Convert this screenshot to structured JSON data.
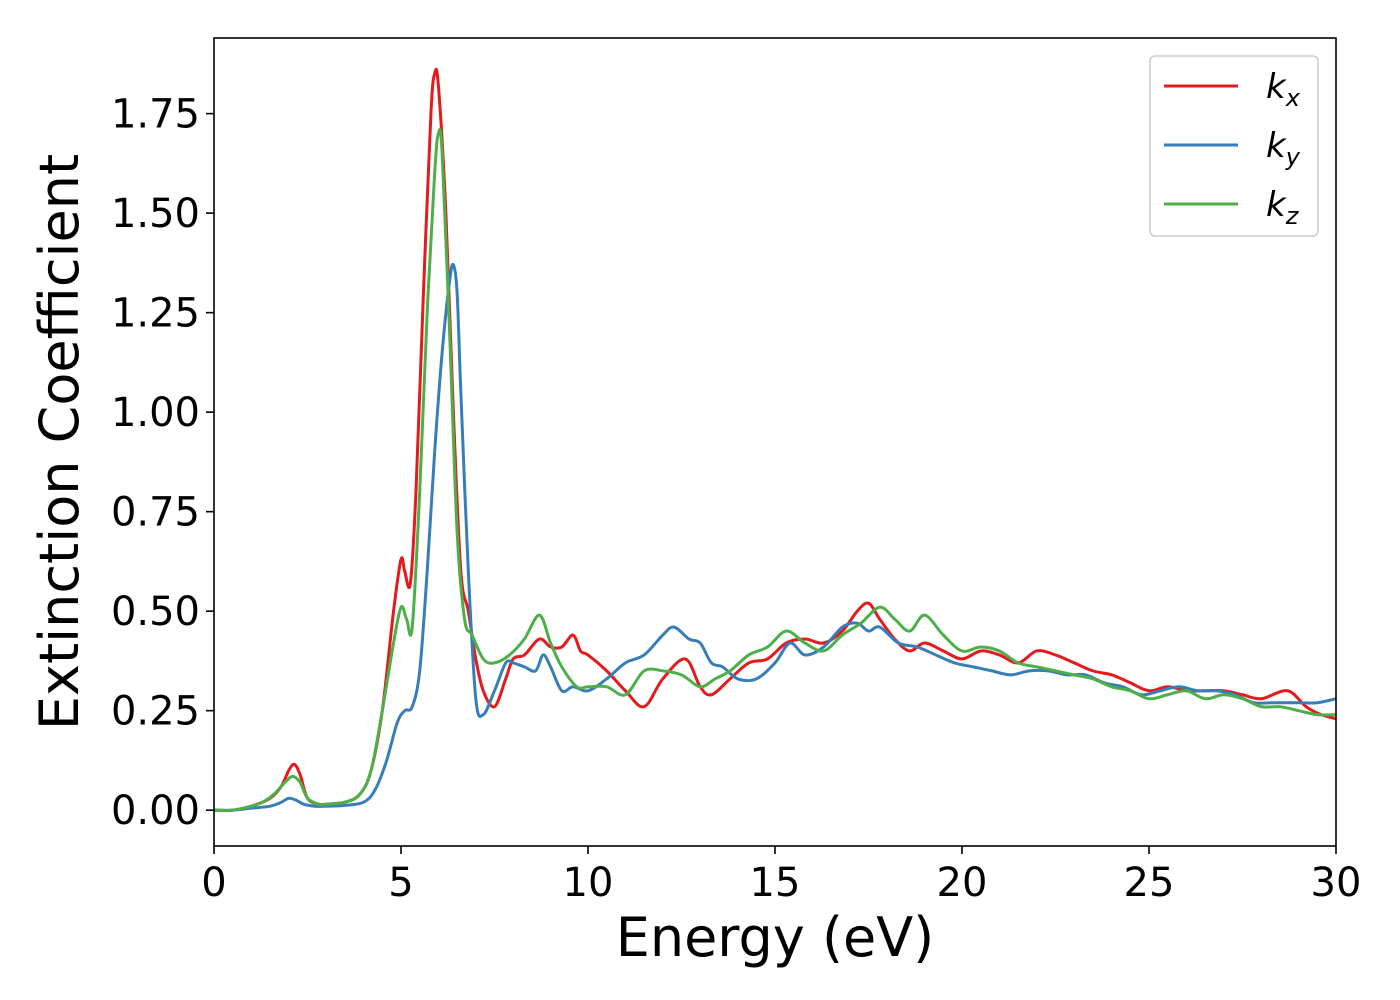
{
  "chart_data": {
    "type": "line",
    "title": "",
    "xlabel": "Energy (eV)",
    "ylabel": "Extinction Coefficient",
    "xlim": [
      0,
      30
    ],
    "ylim": [
      -0.09,
      1.94
    ],
    "xticks": [
      0,
      5,
      10,
      15,
      20,
      25,
      30
    ],
    "xtick_labels": [
      "0",
      "5",
      "10",
      "15",
      "20",
      "25",
      "30"
    ],
    "yticks": [
      0.0,
      0.25,
      0.5,
      0.75,
      1.0,
      1.25,
      1.5,
      1.75
    ],
    "ytick_labels": [
      "0.00",
      "0.25",
      "0.50",
      "0.75",
      "1.00",
      "1.25",
      "1.50",
      "1.75"
    ],
    "grid": false,
    "legend": "top-right",
    "series": [
      {
        "name": "k_x",
        "label_base": "k",
        "label_sub": "x",
        "color": "#e41a1c",
        "x": [
          0,
          0.5,
          1.0,
          1.5,
          1.8,
          2.0,
          2.15,
          2.3,
          2.5,
          2.8,
          3.0,
          3.5,
          3.9,
          4.2,
          4.5,
          4.8,
          5.0,
          5.1,
          5.25,
          5.4,
          5.6,
          5.8,
          5.9,
          6.0,
          6.2,
          6.4,
          6.6,
          6.8,
          7.0,
          7.2,
          7.5,
          7.8,
          8.0,
          8.3,
          8.7,
          9.0,
          9.3,
          9.6,
          9.8,
          10.0,
          10.5,
          11.0,
          11.5,
          12.0,
          12.6,
          13.0,
          13.3,
          13.8,
          14.3,
          14.8,
          15.3,
          15.8,
          16.3,
          16.8,
          17.2,
          17.5,
          17.8,
          18.2,
          18.6,
          19.0,
          19.5,
          20.0,
          20.5,
          21.0,
          21.5,
          22.0,
          22.5,
          23.0,
          23.5,
          24.0,
          24.5,
          25.0,
          25.5,
          26.0,
          26.5,
          27.0,
          27.5,
          28.0,
          28.7,
          29.2,
          29.6,
          30.0
        ],
        "values": [
          0.0,
          0.0,
          0.01,
          0.03,
          0.06,
          0.1,
          0.115,
          0.09,
          0.03,
          0.015,
          0.015,
          0.02,
          0.04,
          0.1,
          0.25,
          0.5,
          0.63,
          0.6,
          0.57,
          0.8,
          1.3,
          1.75,
          1.85,
          1.82,
          1.5,
          1.0,
          0.6,
          0.5,
          0.38,
          0.3,
          0.26,
          0.33,
          0.38,
          0.39,
          0.43,
          0.41,
          0.41,
          0.44,
          0.4,
          0.39,
          0.35,
          0.3,
          0.26,
          0.33,
          0.38,
          0.31,
          0.29,
          0.33,
          0.37,
          0.38,
          0.42,
          0.43,
          0.42,
          0.45,
          0.5,
          0.52,
          0.48,
          0.43,
          0.4,
          0.42,
          0.4,
          0.38,
          0.4,
          0.39,
          0.37,
          0.4,
          0.39,
          0.37,
          0.35,
          0.34,
          0.32,
          0.3,
          0.31,
          0.3,
          0.3,
          0.3,
          0.29,
          0.28,
          0.3,
          0.26,
          0.24,
          0.23
        ]
      },
      {
        "name": "k_y",
        "label_base": "k",
        "label_sub": "y",
        "color": "#377eb8",
        "x": [
          0,
          0.5,
          1.0,
          1.5,
          1.8,
          2.0,
          2.2,
          2.4,
          2.7,
          3.0,
          3.5,
          4.0,
          4.3,
          4.6,
          4.9,
          5.1,
          5.3,
          5.5,
          5.7,
          5.9,
          6.1,
          6.3,
          6.4,
          6.5,
          6.6,
          6.8,
          7.0,
          7.2,
          7.5,
          7.8,
          8.0,
          8.3,
          8.6,
          8.8,
          9.0,
          9.3,
          9.6,
          10.0,
          10.5,
          11.0,
          11.5,
          12.0,
          12.3,
          12.7,
          13.0,
          13.3,
          13.6,
          14.0,
          14.5,
          15.0,
          15.4,
          15.8,
          16.3,
          16.8,
          17.2,
          17.5,
          17.8,
          18.3,
          18.8,
          19.3,
          19.8,
          20.3,
          20.8,
          21.3,
          21.8,
          22.3,
          22.8,
          23.3,
          23.8,
          24.3,
          24.8,
          25.3,
          25.8,
          26.3,
          26.8,
          27.3,
          27.8,
          28.3,
          29.0,
          29.5,
          30.0
        ],
        "values": [
          0.0,
          0.0,
          0.005,
          0.01,
          0.02,
          0.03,
          0.025,
          0.015,
          0.01,
          0.01,
          0.012,
          0.02,
          0.05,
          0.12,
          0.22,
          0.25,
          0.26,
          0.35,
          0.6,
          0.9,
          1.15,
          1.33,
          1.37,
          1.3,
          1.05,
          0.6,
          0.28,
          0.24,
          0.3,
          0.37,
          0.37,
          0.36,
          0.35,
          0.39,
          0.36,
          0.3,
          0.31,
          0.3,
          0.33,
          0.37,
          0.39,
          0.44,
          0.46,
          0.43,
          0.42,
          0.37,
          0.36,
          0.33,
          0.33,
          0.37,
          0.42,
          0.39,
          0.41,
          0.46,
          0.47,
          0.45,
          0.46,
          0.42,
          0.41,
          0.39,
          0.37,
          0.36,
          0.35,
          0.34,
          0.35,
          0.35,
          0.34,
          0.34,
          0.32,
          0.31,
          0.29,
          0.3,
          0.31,
          0.3,
          0.3,
          0.29,
          0.27,
          0.27,
          0.27,
          0.27,
          0.28
        ]
      },
      {
        "name": "k_z",
        "label_base": "k",
        "label_sub": "z",
        "color": "#4daf4a",
        "x": [
          0,
          0.5,
          1.0,
          1.3,
          1.6,
          1.9,
          2.1,
          2.3,
          2.5,
          2.8,
          3.0,
          3.5,
          3.9,
          4.2,
          4.5,
          4.8,
          5.0,
          5.15,
          5.3,
          5.5,
          5.7,
          5.9,
          6.0,
          6.1,
          6.3,
          6.5,
          6.7,
          6.9,
          7.2,
          7.5,
          7.9,
          8.3,
          8.7,
          9.0,
          9.3,
          9.7,
          10.0,
          10.5,
          11.0,
          11.5,
          12.0,
          12.5,
          13.0,
          13.4,
          13.8,
          14.3,
          14.8,
          15.3,
          15.8,
          16.3,
          16.8,
          17.3,
          17.8,
          18.2,
          18.6,
          19.0,
          19.5,
          20.0,
          20.5,
          21.0,
          21.5,
          22.0,
          22.5,
          23.0,
          23.5,
          24.0,
          24.5,
          25.0,
          25.5,
          26.0,
          26.5,
          27.0,
          27.5,
          28.0,
          28.5,
          29.0,
          29.5,
          30.0
        ],
        "values": [
          0.0,
          0.0,
          0.01,
          0.02,
          0.04,
          0.07,
          0.085,
          0.07,
          0.03,
          0.015,
          0.015,
          0.02,
          0.04,
          0.1,
          0.25,
          0.42,
          0.51,
          0.48,
          0.46,
          0.8,
          1.25,
          1.6,
          1.7,
          1.65,
          1.2,
          0.7,
          0.48,
          0.44,
          0.38,
          0.37,
          0.39,
          0.43,
          0.49,
          0.42,
          0.36,
          0.31,
          0.31,
          0.31,
          0.29,
          0.35,
          0.35,
          0.34,
          0.31,
          0.33,
          0.35,
          0.39,
          0.41,
          0.45,
          0.42,
          0.4,
          0.44,
          0.47,
          0.51,
          0.48,
          0.45,
          0.49,
          0.44,
          0.4,
          0.41,
          0.4,
          0.37,
          0.36,
          0.35,
          0.34,
          0.33,
          0.31,
          0.3,
          0.28,
          0.29,
          0.3,
          0.28,
          0.29,
          0.28,
          0.26,
          0.26,
          0.25,
          0.24,
          0.24
        ]
      }
    ]
  }
}
